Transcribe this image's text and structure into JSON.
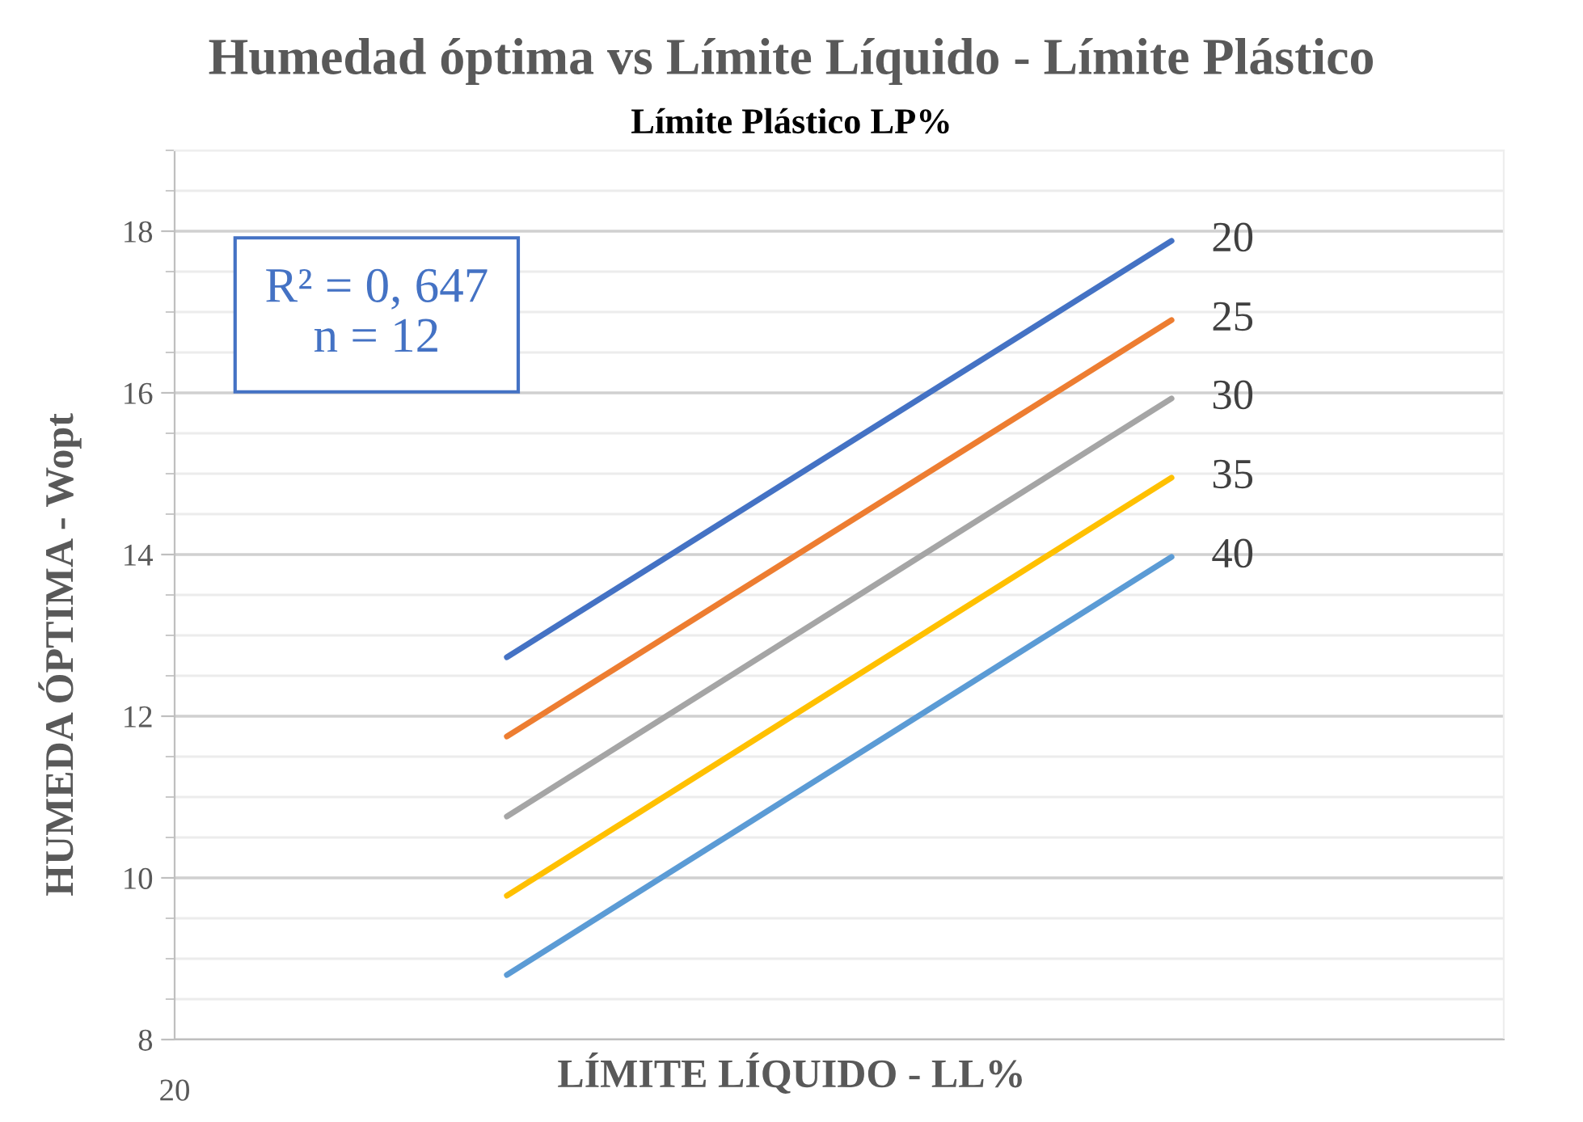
{
  "chart_data": {
    "type": "line",
    "title": "Humedad óptima vs Límite Líquido - Límite Plástico",
    "subtitle": "Límite Plástico LP%",
    "xlabel": "LÍMITE LÍQUIDO - LL%",
    "ylabel": "HUMEDA ÓPTIMA - Wopt",
    "categories": [
      null,
      null
    ],
    "series": [
      {
        "name": "20",
        "color": "#4472c4",
        "values": [
          12.73,
          17.88
        ]
      },
      {
        "name": "25",
        "color": "#ed7d31",
        "values": [
          11.75,
          16.9
        ]
      },
      {
        "name": "30",
        "color": "#a5a5a5",
        "values": [
          10.76,
          15.93
        ]
      },
      {
        "name": "35",
        "color": "#ffc000",
        "values": [
          9.78,
          14.95
        ]
      },
      {
        "name": "40",
        "color": "#5b9bd5",
        "values": [
          8.8,
          13.97
        ]
      }
    ],
    "ylim": [
      8,
      19
    ],
    "yticks": [
      8,
      10,
      12,
      14,
      16,
      18
    ],
    "grid": "y",
    "marker": "none",
    "line_style": "solid",
    "annotations": [
      "R² = 0, 647\nn = 12",
      "20"
    ]
  }
}
